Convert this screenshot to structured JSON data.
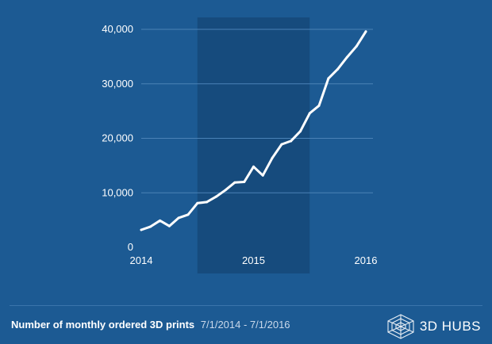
{
  "chart_data": {
    "type": "line",
    "title": "",
    "xlabel": "",
    "ylabel": "",
    "x_ticks": [
      "2014",
      "2015",
      "2016"
    ],
    "x_range": [
      2014.0,
      2016.0
    ],
    "ylim": [
      0,
      40000
    ],
    "y_ticks": [
      0,
      10000,
      20000,
      30000,
      40000
    ],
    "y_tick_labels": [
      "0",
      "10,000",
      "20,000",
      "30,000",
      "40,000"
    ],
    "highlight_band": [
      2014.5,
      2015.5
    ],
    "grid": true,
    "series": [
      {
        "name": "Monthly ordered 3D prints",
        "x": [
          2014.0,
          2014.083,
          2014.167,
          2014.25,
          2014.333,
          2014.417,
          2014.5,
          2014.583,
          2014.667,
          2014.75,
          2014.833,
          2014.917,
          2015.0,
          2015.083,
          2015.167,
          2015.25,
          2015.333,
          2015.417,
          2015.5,
          2015.583,
          2015.667,
          2015.75,
          2015.833,
          2015.917,
          2016.0
        ],
        "values": [
          3200,
          3800,
          4900,
          3900,
          5400,
          6000,
          8100,
          8300,
          9300,
          10500,
          11900,
          12000,
          14800,
          13200,
          16400,
          18900,
          19500,
          21300,
          24600,
          26000,
          31000,
          32700,
          34900,
          36900,
          39600
        ]
      }
    ]
  },
  "footer": {
    "caption_title": "Number of monthly ordered 3D prints",
    "caption_range": "7/1/2014 - 7/1/2016",
    "brand_name": "3D HUBS"
  },
  "colors": {
    "background": "#1c5a93",
    "band": "#164b7d",
    "grid": "#4a82b6",
    "line": "#ffffff"
  }
}
